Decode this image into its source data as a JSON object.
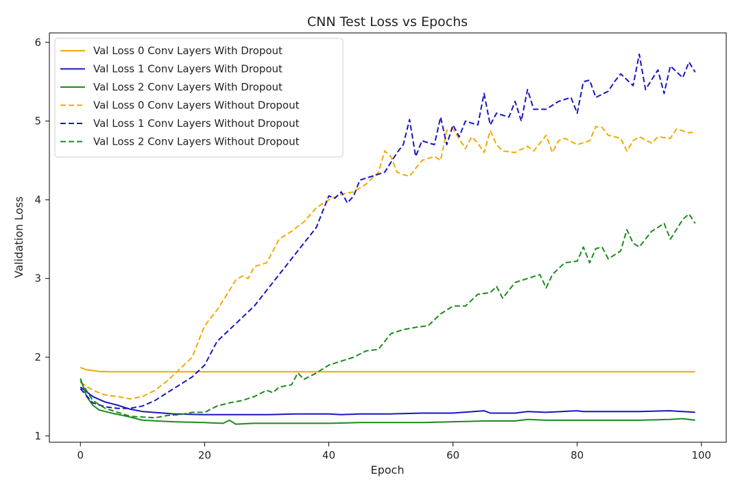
{
  "chart_data": {
    "type": "line",
    "title": "CNN Test Loss vs Epochs",
    "xlabel": "Epoch",
    "ylabel": "Validation Loss",
    "xlim": [
      -5,
      104
    ],
    "ylim": [
      0.92,
      6.12
    ],
    "xticks": [
      0,
      20,
      40,
      60,
      80,
      100
    ],
    "yticks": [
      1,
      2,
      3,
      4,
      5,
      6
    ],
    "grid": false,
    "legend_position": "top-left",
    "x": {
      "start": 0,
      "end": 99,
      "step": 1
    },
    "series": [
      {
        "name": "Val Loss 0 Conv Layers With Dropout",
        "color": "#F2A900",
        "style": "solid",
        "keypoints": [
          [
            0,
            1.87
          ],
          [
            1,
            1.84
          ],
          [
            2,
            1.83
          ],
          [
            3,
            1.82
          ],
          [
            5,
            1.815
          ],
          [
            10,
            1.815
          ],
          [
            99,
            1.815
          ]
        ]
      },
      {
        "name": "Val Loss 1 Conv Layers With Dropout",
        "color": "#1515C0",
        "style": "solid",
        "keypoints": [
          [
            0,
            1.62
          ],
          [
            2,
            1.5
          ],
          [
            4,
            1.43
          ],
          [
            6,
            1.39
          ],
          [
            8,
            1.34
          ],
          [
            10,
            1.31
          ],
          [
            15,
            1.28
          ],
          [
            20,
            1.27
          ],
          [
            25,
            1.27
          ],
          [
            30,
            1.27
          ],
          [
            35,
            1.28
          ],
          [
            40,
            1.28
          ],
          [
            42,
            1.27
          ],
          [
            45,
            1.28
          ],
          [
            50,
            1.28
          ],
          [
            55,
            1.29
          ],
          [
            60,
            1.29
          ],
          [
            65,
            1.32
          ],
          [
            66,
            1.29
          ],
          [
            70,
            1.29
          ],
          [
            72,
            1.31
          ],
          [
            75,
            1.3
          ],
          [
            80,
            1.32
          ],
          [
            81,
            1.31
          ],
          [
            85,
            1.31
          ],
          [
            90,
            1.31
          ],
          [
            95,
            1.32
          ],
          [
            97,
            1.31
          ],
          [
            99,
            1.3
          ]
        ]
      },
      {
        "name": "Val Loss 2 Conv Layers With Dropout",
        "color": "#1A8A1A",
        "style": "solid",
        "keypoints": [
          [
            0,
            1.73
          ],
          [
            1,
            1.5
          ],
          [
            2,
            1.39
          ],
          [
            3,
            1.33
          ],
          [
            5,
            1.29
          ],
          [
            8,
            1.24
          ],
          [
            10,
            1.2
          ],
          [
            15,
            1.18
          ],
          [
            20,
            1.17
          ],
          [
            23,
            1.16
          ],
          [
            24,
            1.2
          ],
          [
            25,
            1.15
          ],
          [
            28,
            1.16
          ],
          [
            30,
            1.16
          ],
          [
            35,
            1.16
          ],
          [
            40,
            1.16
          ],
          [
            45,
            1.17
          ],
          [
            50,
            1.17
          ],
          [
            55,
            1.17
          ],
          [
            60,
            1.18
          ],
          [
            65,
            1.19
          ],
          [
            70,
            1.19
          ],
          [
            72,
            1.21
          ],
          [
            75,
            1.2
          ],
          [
            80,
            1.2
          ],
          [
            85,
            1.2
          ],
          [
            90,
            1.2
          ],
          [
            95,
            1.21
          ],
          [
            97,
            1.22
          ],
          [
            99,
            1.2
          ]
        ]
      },
      {
        "name": "Val Loss 0 Conv Layers Without Dropout",
        "color": "#F2A900",
        "style": "dashed",
        "keypoints": [
          [
            0,
            1.68
          ],
          [
            2,
            1.58
          ],
          [
            4,
            1.52
          ],
          [
            6,
            1.5
          ],
          [
            8,
            1.47
          ],
          [
            10,
            1.5
          ],
          [
            12,
            1.58
          ],
          [
            14,
            1.7
          ],
          [
            16,
            1.85
          ],
          [
            18,
            2.0
          ],
          [
            20,
            2.4
          ],
          [
            22,
            2.6
          ],
          [
            24,
            2.85
          ],
          [
            25,
            2.98
          ],
          [
            26,
            3.03
          ],
          [
            27,
            3.0
          ],
          [
            28,
            3.15
          ],
          [
            30,
            3.2
          ],
          [
            32,
            3.5
          ],
          [
            34,
            3.6
          ],
          [
            36,
            3.72
          ],
          [
            38,
            3.9
          ],
          [
            40,
            4.0
          ],
          [
            42,
            4.07
          ],
          [
            44,
            4.1
          ],
          [
            46,
            4.2
          ],
          [
            48,
            4.35
          ],
          [
            49,
            4.62
          ],
          [
            50,
            4.55
          ],
          [
            51,
            4.35
          ],
          [
            52,
            4.32
          ],
          [
            53,
            4.3
          ],
          [
            55,
            4.5
          ],
          [
            57,
            4.55
          ],
          [
            58,
            4.5
          ],
          [
            59,
            4.88
          ],
          [
            60,
            4.9
          ],
          [
            62,
            4.65
          ],
          [
            63,
            4.8
          ],
          [
            64,
            4.72
          ],
          [
            65,
            4.6
          ],
          [
            66,
            4.88
          ],
          [
            67,
            4.7
          ],
          [
            68,
            4.62
          ],
          [
            70,
            4.6
          ],
          [
            72,
            4.68
          ],
          [
            73,
            4.62
          ],
          [
            75,
            4.82
          ],
          [
            76,
            4.6
          ],
          [
            77,
            4.75
          ],
          [
            78,
            4.78
          ],
          [
            80,
            4.7
          ],
          [
            82,
            4.75
          ],
          [
            83,
            4.93
          ],
          [
            84,
            4.92
          ],
          [
            85,
            4.82
          ],
          [
            87,
            4.78
          ],
          [
            88,
            4.62
          ],
          [
            89,
            4.75
          ],
          [
            90,
            4.8
          ],
          [
            92,
            4.72
          ],
          [
            93,
            4.8
          ],
          [
            95,
            4.78
          ],
          [
            96,
            4.9
          ],
          [
            98,
            4.85
          ],
          [
            99,
            4.86
          ]
        ]
      },
      {
        "name": "Val Loss 1 Conv Layers Without Dropout",
        "color": "#1515C0",
        "style": "dashed",
        "keypoints": [
          [
            0,
            1.6
          ],
          [
            2,
            1.42
          ],
          [
            4,
            1.37
          ],
          [
            6,
            1.35
          ],
          [
            8,
            1.35
          ],
          [
            10,
            1.38
          ],
          [
            12,
            1.45
          ],
          [
            14,
            1.55
          ],
          [
            16,
            1.65
          ],
          [
            18,
            1.75
          ],
          [
            20,
            1.9
          ],
          [
            22,
            2.2
          ],
          [
            24,
            2.35
          ],
          [
            26,
            2.5
          ],
          [
            28,
            2.65
          ],
          [
            30,
            2.85
          ],
          [
            32,
            3.05
          ],
          [
            34,
            3.25
          ],
          [
            36,
            3.45
          ],
          [
            38,
            3.65
          ],
          [
            40,
            4.05
          ],
          [
            41,
            4.02
          ],
          [
            42,
            4.1
          ],
          [
            43,
            3.96
          ],
          [
            44,
            4.05
          ],
          [
            45,
            4.25
          ],
          [
            47,
            4.3
          ],
          [
            49,
            4.35
          ],
          [
            51,
            4.6
          ],
          [
            52,
            4.7
          ],
          [
            53,
            5.02
          ],
          [
            54,
            4.55
          ],
          [
            55,
            4.75
          ],
          [
            57,
            4.7
          ],
          [
            58,
            5.05
          ],
          [
            59,
            4.7
          ],
          [
            60,
            4.95
          ],
          [
            61,
            4.8
          ],
          [
            62,
            5.0
          ],
          [
            64,
            4.95
          ],
          [
            65,
            5.35
          ],
          [
            66,
            4.95
          ],
          [
            67,
            5.1
          ],
          [
            69,
            5.05
          ],
          [
            70,
            5.25
          ],
          [
            71,
            5.0
          ],
          [
            72,
            5.4
          ],
          [
            73,
            5.15
          ],
          [
            75,
            5.15
          ],
          [
            77,
            5.25
          ],
          [
            79,
            5.3
          ],
          [
            80,
            5.1
          ],
          [
            81,
            5.5
          ],
          [
            82,
            5.52
          ],
          [
            83,
            5.3
          ],
          [
            85,
            5.38
          ],
          [
            86,
            5.5
          ],
          [
            87,
            5.6
          ],
          [
            89,
            5.45
          ],
          [
            90,
            5.85
          ],
          [
            91,
            5.4
          ],
          [
            93,
            5.65
          ],
          [
            94,
            5.35
          ],
          [
            95,
            5.7
          ],
          [
            97,
            5.55
          ],
          [
            98,
            5.75
          ],
          [
            99,
            5.62
          ]
        ]
      },
      {
        "name": "Val Loss 2 Conv Layers Without Dropout",
        "color": "#1A8A1A",
        "style": "dashed",
        "keypoints": [
          [
            0,
            1.7
          ],
          [
            2,
            1.45
          ],
          [
            4,
            1.35
          ],
          [
            6,
            1.3
          ],
          [
            8,
            1.25
          ],
          [
            10,
            1.24
          ],
          [
            12,
            1.23
          ],
          [
            14,
            1.26
          ],
          [
            16,
            1.27
          ],
          [
            18,
            1.3
          ],
          [
            20,
            1.3
          ],
          [
            22,
            1.38
          ],
          [
            24,
            1.42
          ],
          [
            26,
            1.45
          ],
          [
            28,
            1.5
          ],
          [
            30,
            1.58
          ],
          [
            31,
            1.55
          ],
          [
            32,
            1.62
          ],
          [
            34,
            1.65
          ],
          [
            35,
            1.8
          ],
          [
            36,
            1.72
          ],
          [
            38,
            1.8
          ],
          [
            40,
            1.9
          ],
          [
            42,
            1.95
          ],
          [
            44,
            2.0
          ],
          [
            46,
            2.08
          ],
          [
            48,
            2.1
          ],
          [
            50,
            2.3
          ],
          [
            52,
            2.35
          ],
          [
            54,
            2.38
          ],
          [
            56,
            2.4
          ],
          [
            58,
            2.55
          ],
          [
            60,
            2.65
          ],
          [
            62,
            2.65
          ],
          [
            64,
            2.8
          ],
          [
            66,
            2.82
          ],
          [
            67,
            2.9
          ],
          [
            68,
            2.75
          ],
          [
            70,
            2.95
          ],
          [
            72,
            3.0
          ],
          [
            74,
            3.05
          ],
          [
            75,
            2.88
          ],
          [
            76,
            3.05
          ],
          [
            78,
            3.2
          ],
          [
            80,
            3.22
          ],
          [
            81,
            3.4
          ],
          [
            82,
            3.2
          ],
          [
            83,
            3.38
          ],
          [
            84,
            3.4
          ],
          [
            85,
            3.25
          ],
          [
            87,
            3.35
          ],
          [
            88,
            3.62
          ],
          [
            89,
            3.45
          ],
          [
            90,
            3.4
          ],
          [
            92,
            3.6
          ],
          [
            94,
            3.7
          ],
          [
            95,
            3.5
          ],
          [
            97,
            3.75
          ],
          [
            98,
            3.82
          ],
          [
            99,
            3.7
          ]
        ]
      }
    ]
  }
}
